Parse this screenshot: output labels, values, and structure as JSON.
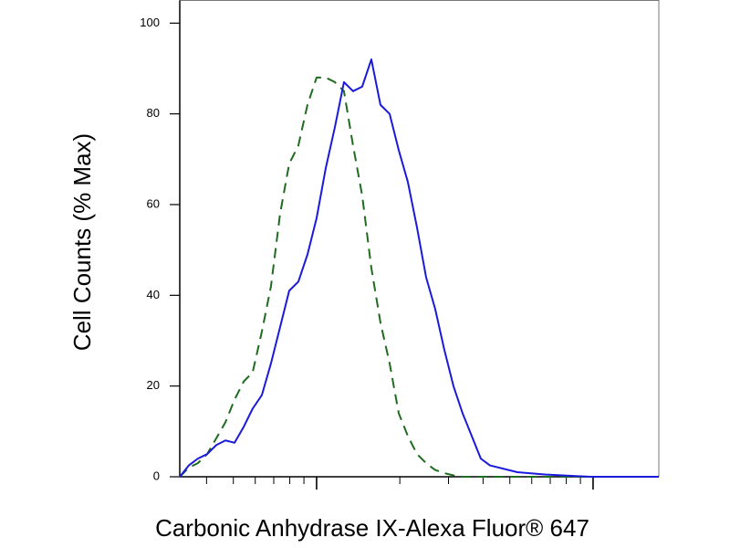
{
  "chart_data": {
    "type": "line",
    "x_label": "Carbonic Anhydrase IX-Alexa Fluor® 647",
    "y_label": "Cell Counts (% Max)",
    "xscale": "log",
    "xlim": [
      320,
      17290
    ],
    "xticks": [
      400,
      500,
      600,
      700,
      800,
      900,
      1000,
      2000,
      3000,
      4000,
      5000,
      6000,
      7000,
      8000,
      9000,
      10000
    ],
    "ylim": [
      0,
      105
    ],
    "yticks": [
      0,
      20,
      40,
      60,
      80,
      100
    ],
    "x": [
      320,
      345,
      372,
      402,
      434,
      468,
      505,
      545,
      587,
      634,
      684,
      738,
      796,
      859,
      927,
      1000,
      1079,
      1164,
      1256,
      1355,
      1462,
      1578,
      1702,
      1837,
      1982,
      2138,
      2307,
      2489,
      2685,
      2897,
      3126,
      3373,
      3639,
      3926,
      4236,
      5321,
      6683,
      9772,
      17290
    ],
    "series": [
      {
        "color": "#1a1adb",
        "dash": false,
        "values": [
          0,
          2.5,
          4,
          5,
          7,
          8,
          7.5,
          11,
          15,
          18,
          25,
          33,
          41,
          43,
          49,
          57,
          68,
          77,
          87,
          85,
          86,
          92,
          82,
          80,
          72,
          65,
          55,
          44,
          37,
          28,
          20,
          14,
          9,
          4,
          2.5,
          1,
          0.5,
          0,
          0
        ]
      },
      {
        "color": "#1f6b1f",
        "dash": true,
        "values": [
          0,
          2,
          3,
          5,
          8.5,
          12,
          17,
          21,
          23,
          32,
          42,
          58,
          69,
          73,
          82,
          88,
          88,
          87,
          85,
          73,
          62,
          46,
          34,
          25,
          14,
          9,
          5,
          3,
          1.5,
          0.8,
          0.3,
          0,
          0,
          0,
          0,
          0,
          0,
          0,
          0
        ]
      }
    ]
  }
}
